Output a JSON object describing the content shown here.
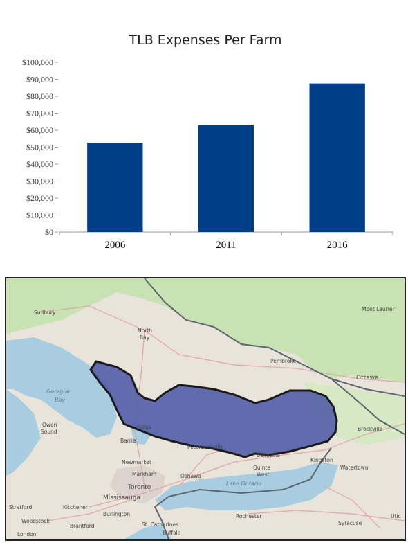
{
  "chart_data": {
    "type": "bar",
    "title": "TLB Expenses Per Farm",
    "categories": [
      "2006",
      "2011",
      "2016"
    ],
    "values": [
      52500,
      63000,
      87500
    ],
    "ylim": [
      0,
      100000
    ],
    "yticks": [
      "$0",
      "$10,000",
      "$20,000",
      "$30,000",
      "$40,000",
      "$50,000",
      "$60,000",
      "$70,000",
      "$80,000",
      "$90,000",
      "$100,000"
    ],
    "ytick_values": [
      0,
      10000,
      20000,
      30000,
      40000,
      50000,
      60000,
      70000,
      80000,
      90000,
      100000
    ],
    "bar_color": "#003f87",
    "xlabel": "",
    "ylabel": "",
    "grid": false,
    "legend": "none"
  },
  "map": {
    "labels": {
      "sudbury": "Sudbury",
      "north_bay": "North Bay",
      "north": "North",
      "bay": "Bay",
      "pembroke": "Pembroke",
      "ottawa": "Ottawa",
      "mont_laurier": "Mont Laurier",
      "georgian_bay_1": "Georgian",
      "georgian_bay_2": "Bay",
      "owen_sound_1": "Owen",
      "owen_sound_2": "Sound",
      "orillia": "Orillia",
      "barrie": "Barrie",
      "peterborough": "Peterborough",
      "belleville": "Belleville",
      "brockville": "Brockville",
      "kingston": "Kingston",
      "watertown": "Watertown",
      "newmarket": "Newmarket",
      "markham": "Markham",
      "oshawa": "Oshawa",
      "toronto": "Toronto",
      "mississauga": "Mississauga",
      "quinte_1": "Quinte",
      "quinte_2": "West",
      "lake_ontario": "Lake Ontario",
      "stratford": "Stratford",
      "kitchener": "Kitchener",
      "burlington": "Burlington",
      "woodstock": "Woodstock",
      "brantford": "Brantford",
      "st_catharines": "St. Catharines",
      "rochester": "Rochester",
      "syracuse": "Syracuse",
      "london": "London",
      "buffalo": "Buffalo",
      "utica": "Utic"
    },
    "region_color": "#4a56a6",
    "water_color": "#a9cde0",
    "forest_color": "#c9e2b3",
    "land_color": "#e8e4da"
  }
}
